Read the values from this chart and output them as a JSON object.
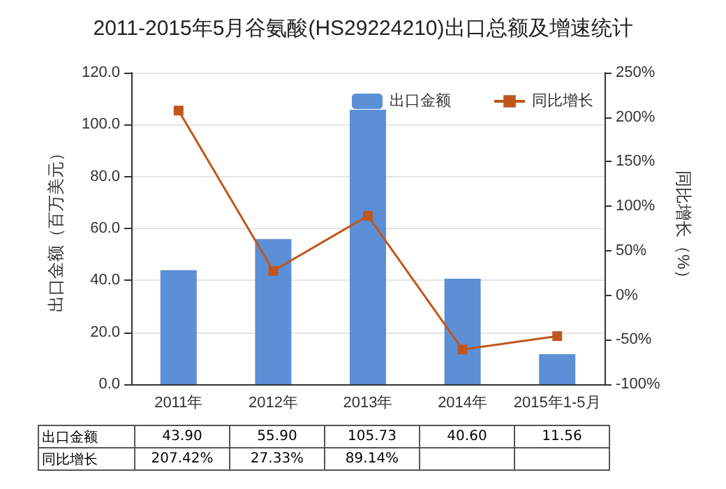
{
  "chart_data": {
    "type": "bar",
    "title": "2011-2015年5月谷氨酸(HS29224210)出口总额及增速统计",
    "categories": [
      "2011年",
      "2012年",
      "2013年",
      "2014年",
      "2015年1-5月"
    ],
    "ylabel": "出口金额（百万美元）",
    "y2label": "同比增长（%）",
    "series": [
      {
        "name": "出口金额",
        "color": "#5b8fd6",
        "values": [
          43.9,
          55.9,
          105.73,
          40.6,
          11.56
        ],
        "value_labels": [
          "43.90",
          "55.90",
          "105.73",
          "40.60",
          "11.56"
        ]
      },
      {
        "name": "同比增长",
        "type": "line",
        "axis": "y2",
        "color": "#c0561b",
        "marker": "square",
        "values": [
          207.42,
          27.33,
          89.14,
          -61,
          -46
        ],
        "value_labels": [
          "207.42%",
          "27.33%",
          "89.14%",
          null,
          null
        ]
      }
    ],
    "ylim": [
      0,
      120
    ],
    "yticks": [
      {
        "value": 0,
        "label": "0.0"
      },
      {
        "value": 20,
        "label": "20.0"
      },
      {
        "value": 40,
        "label": "40.0"
      },
      {
        "value": 60,
        "label": "60.0"
      },
      {
        "value": 80,
        "label": "80.0"
      },
      {
        "value": 100,
        "label": "100.0"
      },
      {
        "value": 120,
        "label": "120.0"
      }
    ],
    "y2lim": [
      -100,
      250
    ],
    "y2ticks": [
      {
        "value": -100,
        "label": "-100%"
      },
      {
        "value": -50,
        "label": "-50%"
      },
      {
        "value": 0,
        "label": "0%"
      },
      {
        "value": 50,
        "label": "50%"
      },
      {
        "value": 100,
        "label": "100%"
      },
      {
        "value": 150,
        "label": "150%"
      },
      {
        "value": 200,
        "label": "200%"
      },
      {
        "value": 250,
        "label": "250%"
      }
    ],
    "grid": "y",
    "legend": "top right"
  }
}
